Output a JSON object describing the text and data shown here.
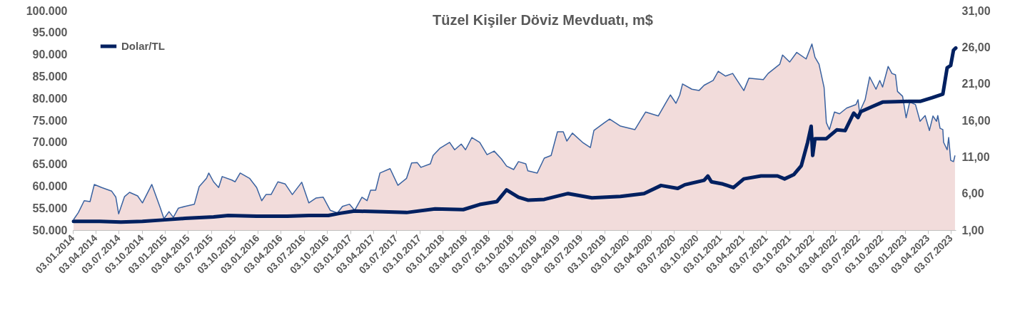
{
  "chart_data": {
    "type": "area",
    "title": "Tüzel Kişiler Döviz Mevduatı, m$",
    "legend": "top left",
    "xlim": [
      "2014-01-03",
      "2023-07-22"
    ],
    "xticks": [
      {
        "value": "2014-01-03",
        "label": "03.01.2014"
      },
      {
        "value": "2014-04-03",
        "label": "03.04.2014"
      },
      {
        "value": "2014-07-03",
        "label": "03.07.2014"
      },
      {
        "value": "2014-10-03",
        "label": "03.10.2014"
      },
      {
        "value": "2015-01-03",
        "label": "03.01.2015"
      },
      {
        "value": "2015-04-03",
        "label": "03.04.2015"
      },
      {
        "value": "2015-07-03",
        "label": "03.07.2015"
      },
      {
        "value": "2015-10-03",
        "label": "03.10.2015"
      },
      {
        "value": "2016-01-03",
        "label": "03.01.2016"
      },
      {
        "value": "2016-04-03",
        "label": "03.04.2016"
      },
      {
        "value": "2016-07-03",
        "label": "03.07.2016"
      },
      {
        "value": "2016-10-03",
        "label": "03.10.2016"
      },
      {
        "value": "2017-01-03",
        "label": "03.01.2017"
      },
      {
        "value": "2017-04-03",
        "label": "03.04.2017"
      },
      {
        "value": "2017-07-03",
        "label": "03.07.2017"
      },
      {
        "value": "2017-10-03",
        "label": "03.10.2017"
      },
      {
        "value": "2018-01-03",
        "label": "03.01.2018"
      },
      {
        "value": "2018-04-03",
        "label": "03.04.2018"
      },
      {
        "value": "2018-07-03",
        "label": "03.07.2018"
      },
      {
        "value": "2018-10-03",
        "label": "03.10.2018"
      },
      {
        "value": "2019-01-03",
        "label": "03.01.2019"
      },
      {
        "value": "2019-04-03",
        "label": "03.04.2019"
      },
      {
        "value": "2019-07-03",
        "label": "03.07.2019"
      },
      {
        "value": "2019-10-03",
        "label": "03.10.2019"
      },
      {
        "value": "2020-01-03",
        "label": "03.01.2020"
      },
      {
        "value": "2020-04-03",
        "label": "03.04.2020"
      },
      {
        "value": "2020-07-03",
        "label": "03.07.2020"
      },
      {
        "value": "2020-10-03",
        "label": "03.10.2020"
      },
      {
        "value": "2021-01-03",
        "label": "03.01.2021"
      },
      {
        "value": "2021-04-03",
        "label": "03.04.2021"
      },
      {
        "value": "2021-07-03",
        "label": "03.07.2021"
      },
      {
        "value": "2021-10-03",
        "label": "03.10.2021"
      },
      {
        "value": "2022-01-03",
        "label": "03.01.2022"
      },
      {
        "value": "2022-04-03",
        "label": "03.04.2022"
      },
      {
        "value": "2022-07-03",
        "label": "03.07.2022"
      },
      {
        "value": "2022-10-03",
        "label": "03.10.2022"
      },
      {
        "value": "2023-01-03",
        "label": "03.01.2023"
      },
      {
        "value": "2023-04-03",
        "label": "03.04.2023"
      },
      {
        "value": "2023-07-03",
        "label": "03.07.2023"
      }
    ],
    "ylim": [
      50000,
      100000
    ],
    "yticks": [
      {
        "value": 50000,
        "label": "50.000"
      },
      {
        "value": 55000,
        "label": "55.000"
      },
      {
        "value": 60000,
        "label": "60.000"
      },
      {
        "value": 65000,
        "label": "65.000"
      },
      {
        "value": 70000,
        "label": "70.000"
      },
      {
        "value": 75000,
        "label": "75.000"
      },
      {
        "value": 80000,
        "label": "80.000"
      },
      {
        "value": 85000,
        "label": "85.000"
      },
      {
        "value": 90000,
        "label": "90.000"
      },
      {
        "value": 95000,
        "label": "95.000"
      },
      {
        "value": 100000,
        "label": "100.000"
      }
    ],
    "y2lim": [
      1,
      31
    ],
    "y2ticks": [
      {
        "value": 1,
        "label": "1,00"
      },
      {
        "value": 6,
        "label": "6,00"
      },
      {
        "value": 11,
        "label": "11,00"
      },
      {
        "value": 16,
        "label": "16,00"
      },
      {
        "value": 21,
        "label": "21,00"
      },
      {
        "value": 26,
        "label": "26,00"
      },
      {
        "value": 31,
        "label": "31,00"
      }
    ],
    "series": [
      {
        "color": "#f2dcdb",
        "x": [
          "2014-01-06",
          "2014-01-25",
          "2014-02-17",
          "2014-03-12",
          "2014-03-29",
          "2014-04-27",
          "2014-06-05",
          "2014-06-22",
          "2014-07-03",
          "2014-07-26",
          "2014-08-15",
          "2014-09-16",
          "2014-10-05",
          "2014-11-11",
          "2014-12-15",
          "2014-12-29",
          "2015-01-18",
          "2015-02-04",
          "2015-02-24",
          "2015-03-22",
          "2015-04-28",
          "2015-05-17",
          "2015-06-15",
          "2015-06-24",
          "2015-07-13",
          "2015-08-02",
          "2015-08-16",
          "2015-09-23",
          "2015-10-06",
          "2015-10-26",
          "2015-12-02",
          "2015-12-30",
          "2016-01-19",
          "2016-02-05",
          "2016-02-25",
          "2016-03-23",
          "2016-04-21",
          "2016-05-19",
          "2016-06-25",
          "2016-07-23",
          "2016-08-20",
          "2016-09-18",
          "2016-10-16",
          "2016-11-13",
          "2016-12-03",
          "2016-12-31",
          "2017-01-20",
          "2017-02-18",
          "2017-03-10",
          "2017-03-24",
          "2017-04-13",
          "2017-04-30",
          "2017-06-09",
          "2017-07-10",
          "2017-08-13",
          "2017-09-02",
          "2017-09-24",
          "2017-10-09",
          "2017-11-15",
          "2017-11-26",
          "2017-12-24",
          "2018-01-30",
          "2018-02-19",
          "2018-03-17",
          "2018-04-03",
          "2018-04-28",
          "2018-05-29",
          "2018-06-27",
          "2018-07-25",
          "2018-08-23",
          "2018-09-12",
          "2018-10-10",
          "2018-10-29",
          "2018-11-27",
          "2018-12-05",
          "2019-01-11",
          "2019-02-08",
          "2019-03-07",
          "2019-04-01",
          "2019-04-24",
          "2019-05-08",
          "2019-05-30",
          "2019-07-09",
          "2019-08-09",
          "2019-08-23",
          "2019-10-02",
          "2019-10-24",
          "2019-12-06",
          "2020-02-01",
          "2020-02-21",
          "2020-03-14",
          "2020-05-03",
          "2020-06-06",
          "2020-06-20",
          "2020-07-12",
          "2020-07-27",
          "2020-08-07",
          "2020-09-13",
          "2020-10-11",
          "2020-10-31",
          "2020-12-06",
          "2020-12-26",
          "2021-01-24",
          "2021-02-21",
          "2021-04-06",
          "2021-04-26",
          "2021-06-22",
          "2021-07-11",
          "2021-08-26",
          "2021-09-06",
          "2021-10-04",
          "2021-11-01",
          "2021-12-08",
          "2021-12-31",
          "2022-01-12",
          "2022-01-28",
          "2022-02-17",
          "2022-02-26",
          "2022-03-10",
          "2022-03-30",
          "2022-04-19",
          "2022-05-17",
          "2022-06-23",
          "2022-07-01",
          "2022-07-07",
          "2022-07-29",
          "2022-08-16",
          "2022-09-10",
          "2022-09-25",
          "2022-10-06",
          "2022-10-28",
          "2022-11-12",
          "2022-11-26",
          "2022-12-04",
          "2022-12-24",
          "2023-01-07",
          "2023-01-21",
          "2023-02-13",
          "2023-03-03",
          "2023-03-23",
          "2023-04-09",
          "2023-04-23",
          "2023-05-07",
          "2023-05-12",
          "2023-05-21",
          "2023-06-01",
          "2023-06-04",
          "2023-06-18",
          "2023-06-24",
          "2023-07-02",
          "2023-07-13",
          "2023-07-19"
        ],
        "values": [
          52400,
          54000,
          56700,
          56500,
          60400,
          59700,
          58900,
          57500,
          53700,
          57600,
          58600,
          57800,
          56200,
          60400,
          55000,
          52600,
          54200,
          52900,
          55000,
          55400,
          55900,
          59900,
          61800,
          63000,
          61000,
          59700,
          62200,
          61400,
          61000,
          63000,
          61800,
          59700,
          56700,
          58100,
          58100,
          61000,
          60500,
          58100,
          60900,
          56200,
          57300,
          57500,
          54500,
          53900,
          55400,
          55900,
          54500,
          57500,
          56700,
          59100,
          59100,
          63000,
          64000,
          60200,
          61800,
          65300,
          65400,
          64300,
          65100,
          67000,
          68700,
          70000,
          68300,
          69600,
          68300,
          71100,
          70000,
          67200,
          68000,
          66200,
          64600,
          63800,
          65600,
          65100,
          63500,
          63000,
          66400,
          67000,
          72400,
          72400,
          70300,
          72100,
          70000,
          68800,
          72700,
          74400,
          75300,
          73700,
          72900,
          74800,
          76900,
          76000,
          79400,
          80800,
          78900,
          80800,
          83300,
          82100,
          81800,
          83000,
          84100,
          86200,
          85100,
          85700,
          81800,
          84600,
          84300,
          85700,
          87800,
          89900,
          88300,
          90500,
          89000,
          92400,
          89400,
          87800,
          82500,
          74500,
          72900,
          76900,
          76500,
          77800,
          78600,
          79700,
          76900,
          79700,
          84900,
          82100,
          84100,
          82600,
          87300,
          85700,
          85400,
          81600,
          80500,
          75600,
          79200,
          78600,
          74800,
          76100,
          72700,
          76000,
          74800,
          76100,
          73200,
          72900,
          70000,
          68300,
          71100,
          65900,
          65600,
          67000
        ]
      },
      {
        "type": "line",
        "name": "Dolar/TL",
        "color": "#002060",
        "axis": "y2",
        "x": [
          "2014-01-06",
          "2014-04-19",
          "2014-07-12",
          "2014-10-05",
          "2015-01-01",
          "2015-03-22",
          "2015-07-13",
          "2015-09-09",
          "2015-12-30",
          "2016-04-29",
          "2016-07-23",
          "2016-10-08",
          "2016-11-24",
          "2017-01-20",
          "2017-05-11",
          "2017-08-13",
          "2017-12-04",
          "2018-03-25",
          "2018-05-29",
          "2018-08-05",
          "2018-09-12",
          "2018-10-29",
          "2018-12-05",
          "2019-02-08",
          "2019-05-13",
          "2019-08-15",
          "2019-12-06",
          "2020-03-08",
          "2020-05-14",
          "2020-07-19",
          "2020-08-16",
          "2020-10-31",
          "2020-11-15",
          "2020-11-29",
          "2021-01-13",
          "2021-02-24",
          "2021-04-06",
          "2021-06-13",
          "2021-08-17",
          "2021-09-14",
          "2021-10-21",
          "2021-11-19",
          "2021-12-14",
          "2021-12-28",
          "2022-01-03",
          "2022-01-12",
          "2022-02-26",
          "2022-04-08",
          "2022-05-11",
          "2022-06-14",
          "2022-07-01",
          "2022-07-12",
          "2022-08-27",
          "2022-10-06",
          "2023-01-16",
          "2023-03-03",
          "2023-04-20",
          "2023-06-01",
          "2023-06-18",
          "2023-07-02",
          "2023-07-13",
          "2023-07-22"
        ],
        "values": [
          2.2,
          2.2,
          2.1,
          2.2,
          2.4,
          2.6,
          2.8,
          3.0,
          2.9,
          2.9,
          3.0,
          3.0,
          3.3,
          3.6,
          3.5,
          3.4,
          3.9,
          3.8,
          4.5,
          4.9,
          6.5,
          5.5,
          5.1,
          5.2,
          6.0,
          5.4,
          5.6,
          6.0,
          7.1,
          6.7,
          7.2,
          7.8,
          8.4,
          7.6,
          7.3,
          6.8,
          8.0,
          8.4,
          8.4,
          8.0,
          8.6,
          9.8,
          13.0,
          15.2,
          11.2,
          13.5,
          13.5,
          14.7,
          14.6,
          17.0,
          16.4,
          17.2,
          17.9,
          18.5,
          18.6,
          18.6,
          19.1,
          19.6,
          23.2,
          23.5,
          25.6,
          25.9
        ]
      }
    ]
  }
}
